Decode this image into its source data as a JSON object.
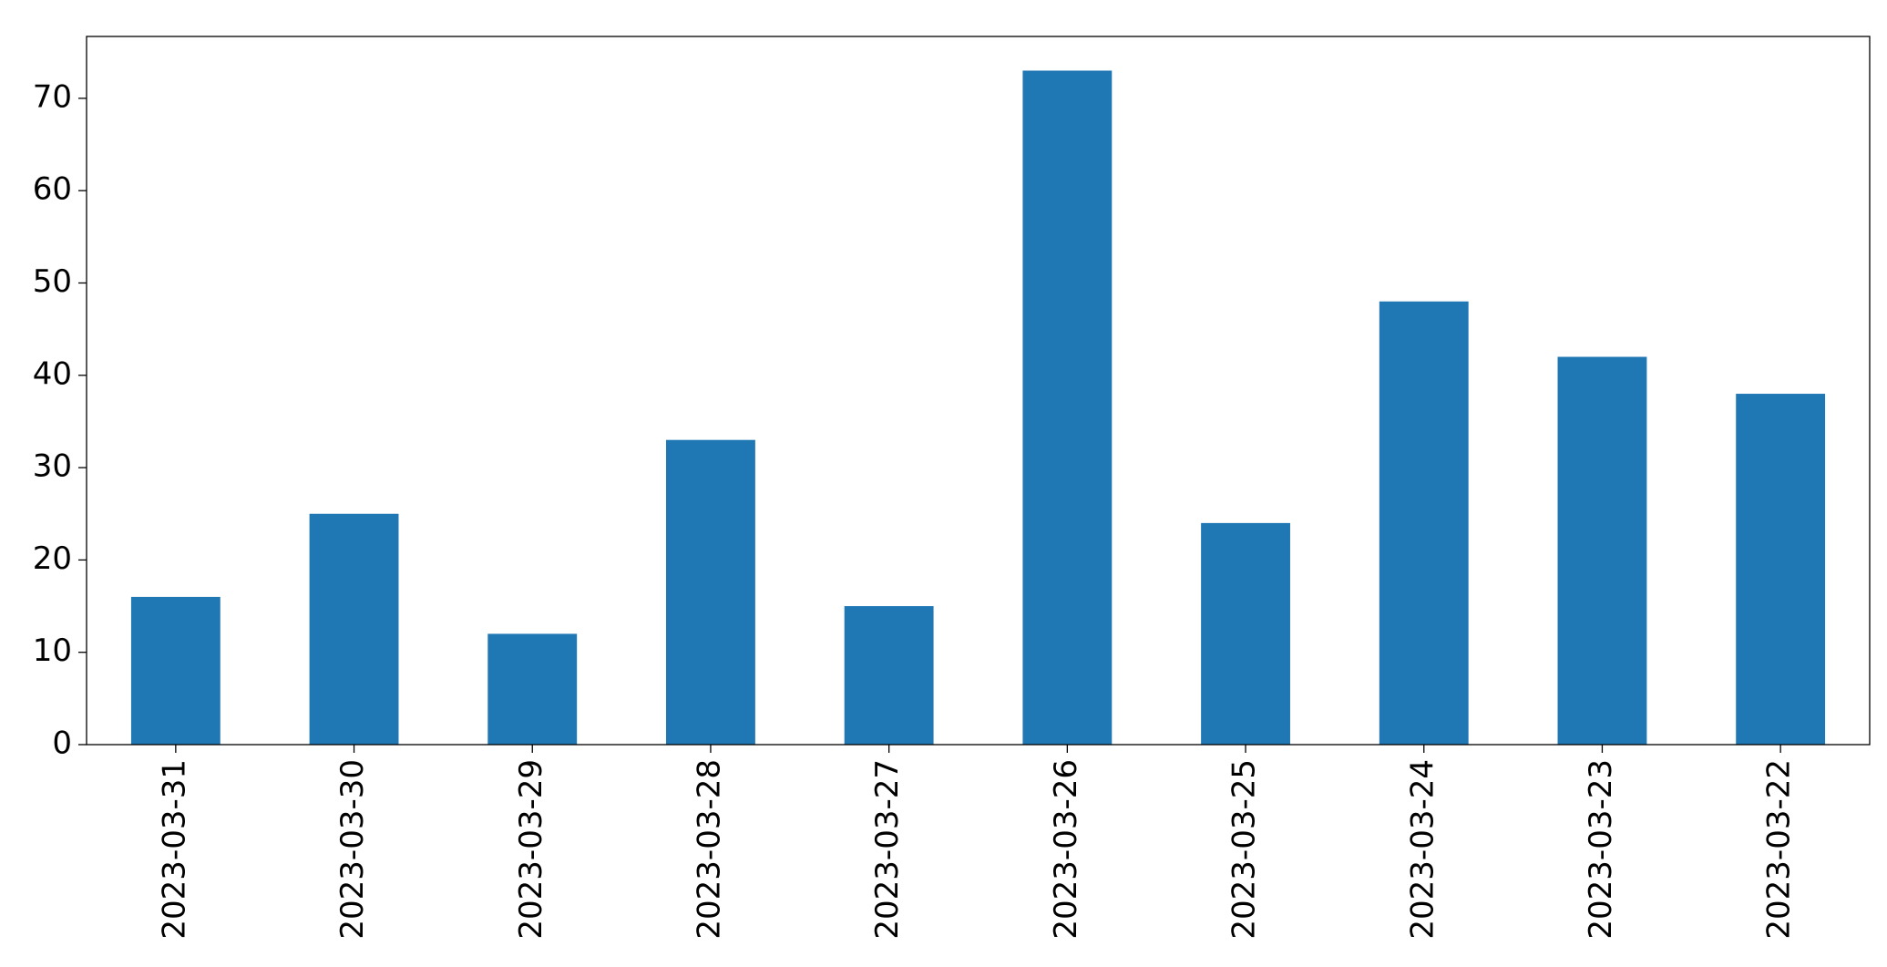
{
  "chart_data": {
    "type": "bar",
    "categories": [
      "2023-03-31",
      "2023-03-30",
      "2023-03-29",
      "2023-03-28",
      "2023-03-27",
      "2023-03-26",
      "2023-03-25",
      "2023-03-24",
      "2023-03-23",
      "2023-03-22"
    ],
    "values": [
      16,
      25,
      12,
      33,
      15,
      73,
      24,
      48,
      42,
      38
    ],
    "color": "#1f77b4",
    "ylim": [
      0,
      76.7
    ],
    "yticks": [
      0,
      10,
      20,
      30,
      40,
      50,
      60,
      70
    ],
    "grid": false
  }
}
